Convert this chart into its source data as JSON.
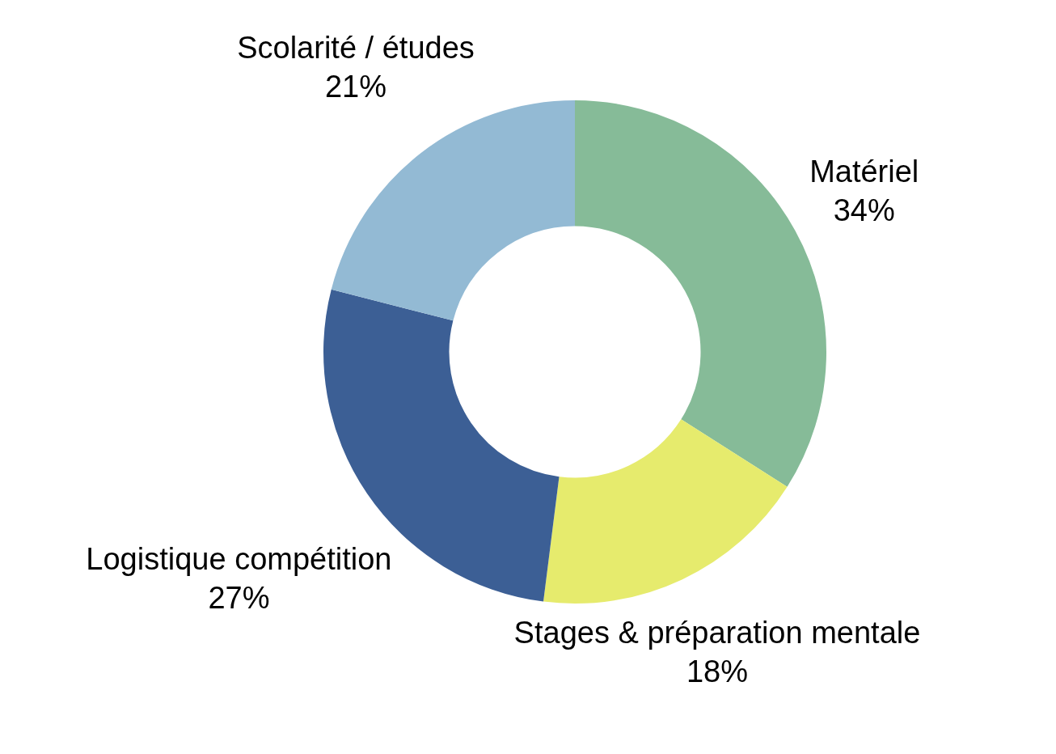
{
  "chart_data": {
    "type": "donut",
    "categories": [
      "Matériel",
      "Stages & préparation mentale",
      "Logistique compétition",
      "Scolarité / études"
    ],
    "values": [
      34,
      18,
      27,
      21
    ],
    "colors": [
      "#86bb98",
      "#e6eb6d",
      "#3c5f95",
      "#93bad4"
    ],
    "value_labels": [
      "34%",
      "18%",
      "27%",
      "21%"
    ]
  }
}
